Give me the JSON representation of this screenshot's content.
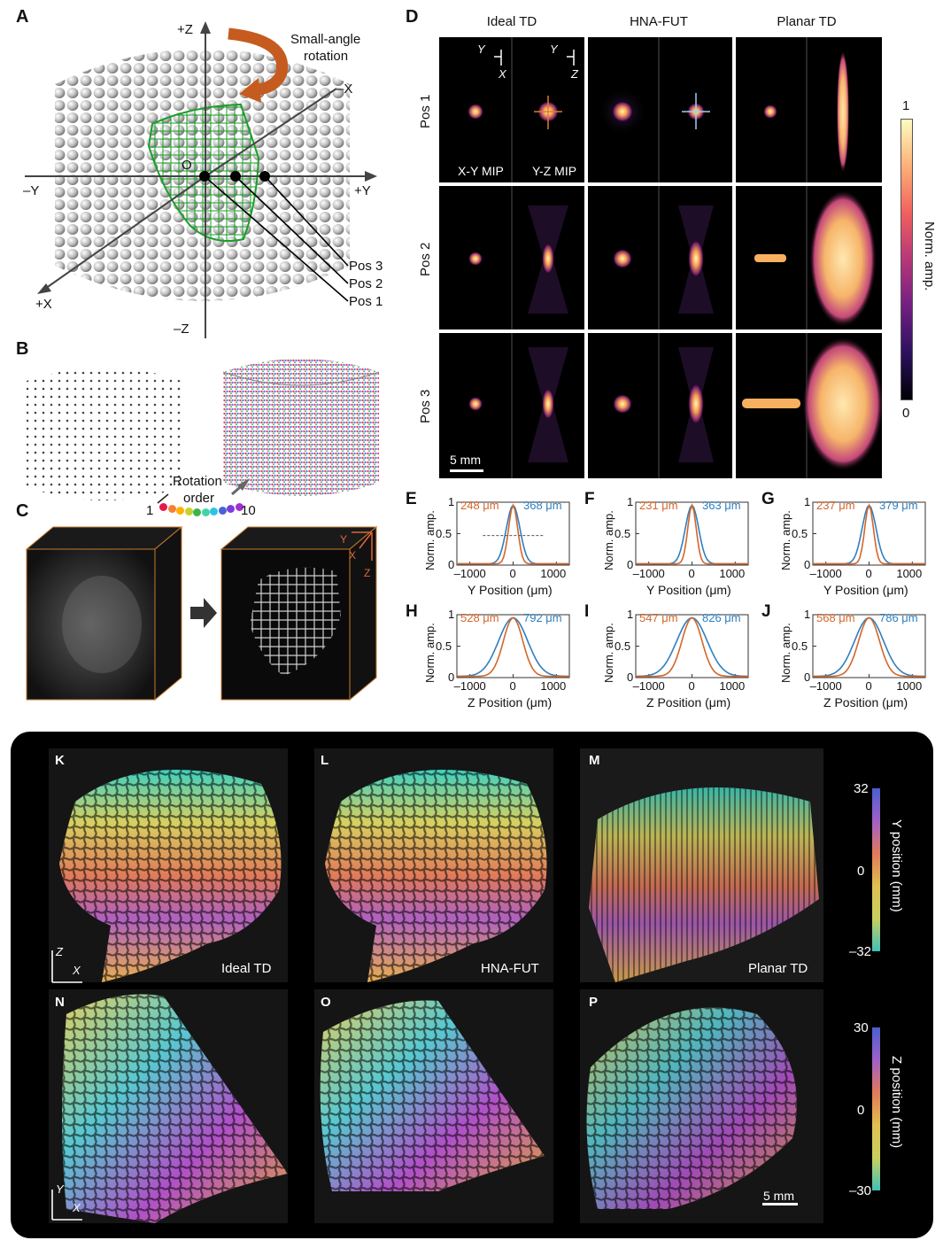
{
  "panelA": {
    "label": "A",
    "axis_labels": {
      "pz": "+Z",
      "nz": "–Z",
      "py": "+Y",
      "ny": "–Y",
      "px": "+X",
      "nx": "–X"
    },
    "origin": "O",
    "rotation_note_line1": "Small-angle",
    "rotation_note_line2": "rotation",
    "positions": [
      "Pos 3",
      "Pos 2",
      "Pos 1"
    ]
  },
  "panelB": {
    "label": "B",
    "rotation_line1": "Rotation",
    "rotation_line2": "order",
    "order_start": "1",
    "order_end": "10",
    "order_colors": [
      "#e6194b",
      "#f58231",
      "#ffb000",
      "#c9d12a",
      "#3cb44b",
      "#42d4a4",
      "#2dc3e6",
      "#4363d8",
      "#7a3ed8",
      "#a22fd0"
    ]
  },
  "panelC": {
    "label": "C",
    "axes": {
      "y": "Y",
      "x": "X",
      "z": "Z"
    }
  },
  "panelD": {
    "label": "D",
    "columns": [
      "Ideal TD",
      "HNA-FUT",
      "Planar TD"
    ],
    "rows": [
      "Pos 1",
      "Pos 2",
      "Pos 3"
    ],
    "axis_glyph_1": {
      "a": "Y",
      "b": "X"
    },
    "axis_glyph_2": {
      "a": "Y",
      "b": "Z"
    },
    "mip_xy": "X-Y MIP",
    "mip_yz": "Y-Z MIP",
    "scale_bar": "5 mm",
    "colorbar": {
      "max": "1",
      "min": "0",
      "label": "Norm. amp."
    }
  },
  "profiles": [
    {
      "label": "E",
      "orange": "248 μm",
      "blue": "368 μm",
      "xlabel": "Y Position (μm)",
      "axis": "Y",
      "show_dashed": true
    },
    {
      "label": "F",
      "orange": "231 μm",
      "blue": "363 μm",
      "xlabel": "Y Position (μm)",
      "axis": "Y",
      "show_dashed": false
    },
    {
      "label": "G",
      "orange": "237 μm",
      "blue": "379 μm",
      "xlabel": "Y Position (μm)",
      "axis": "Y",
      "show_dashed": false
    },
    {
      "label": "H",
      "orange": "528 μm",
      "blue": "792 μm",
      "xlabel": "Z Position (μm)",
      "axis": "Z",
      "show_dashed": false
    },
    {
      "label": "I",
      "orange": "547 μm",
      "blue": "826 μm",
      "xlabel": "Z Position (μm)",
      "axis": "Z",
      "show_dashed": false
    },
    {
      "label": "J",
      "orange": "568 μm",
      "blue": "786 μm",
      "xlabel": "Z Position (μm)",
      "axis": "Z",
      "show_dashed": false
    }
  ],
  "profile_common": {
    "ylabel": "Norm. amp.",
    "yticks": [
      "1",
      "0.5",
      "0"
    ],
    "xticks": [
      "–1000",
      "0",
      "1000"
    ],
    "colors": {
      "orange": "#d4662a",
      "blue": "#2f7fbf"
    }
  },
  "bottom": {
    "labels_top": [
      "K",
      "L",
      "M"
    ],
    "labels_bottom": [
      "N",
      "O",
      "P"
    ],
    "names": [
      "Ideal TD",
      "HNA-FUT",
      "Planar TD"
    ],
    "axes_top": {
      "a": "Z",
      "b": "X"
    },
    "axes_bottom": {
      "a": "Y",
      "b": "X"
    },
    "scale_bar": "5 mm",
    "colorbar_top": {
      "max": "32",
      "mid": "0",
      "min": "–32",
      "label": "Y position (mm)"
    },
    "colorbar_bottom": {
      "max": "30",
      "mid": "0",
      "min": "–30",
      "label": "Z position (mm)"
    }
  }
}
